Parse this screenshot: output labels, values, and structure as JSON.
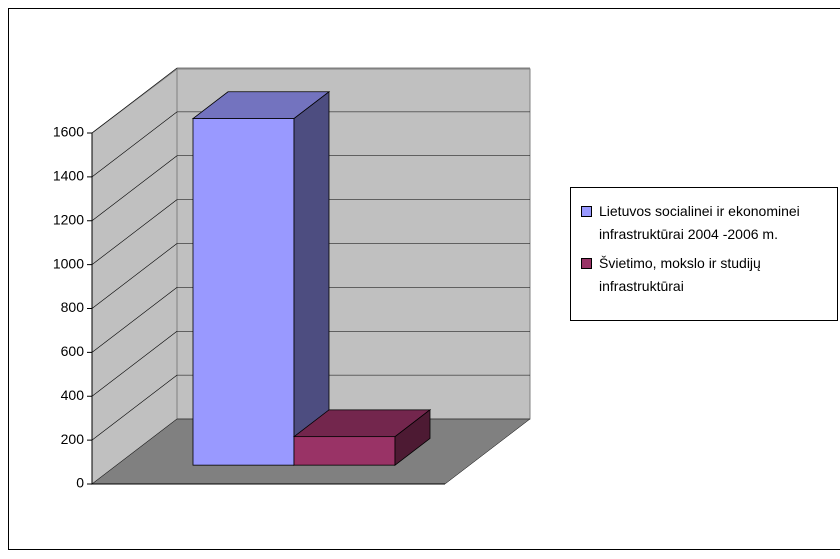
{
  "chart_data": {
    "type": "bar",
    "categories": [
      null
    ],
    "series": [
      {
        "name": "Lietuvos socialinei ir ekonominei infrastruktūrai 2004 -2006 m.",
        "color": "#9999ff",
        "values": [
          1580
        ]
      },
      {
        "name": "Švietimo, mokslo ir studijų infrastruktūrai",
        "color": "#993366",
        "values": [
          130
        ]
      }
    ],
    "ylim": [
      0,
      1600
    ],
    "yticks": [
      0,
      200,
      400,
      600,
      800,
      1000,
      1200,
      1400,
      1600
    ],
    "grid": true,
    "legend": "right"
  }
}
